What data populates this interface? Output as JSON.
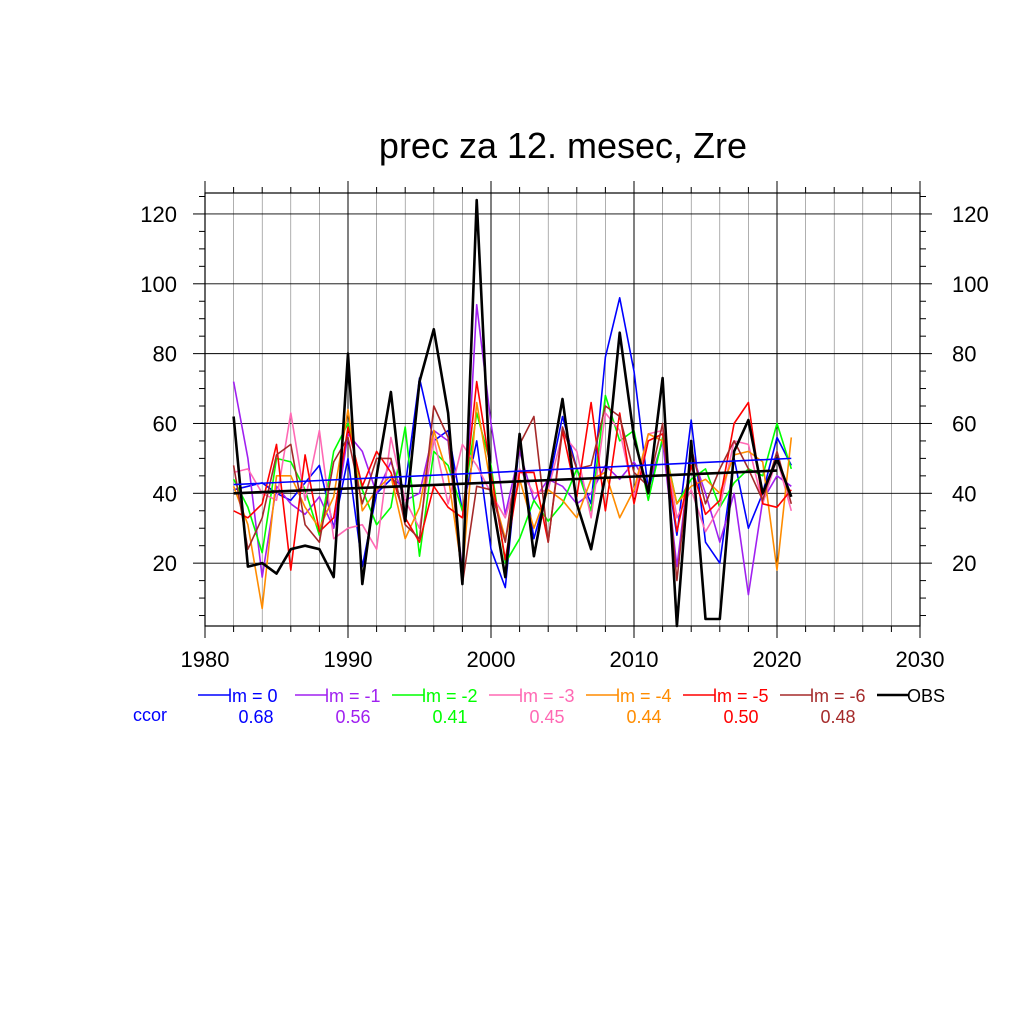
{
  "chart_data": {
    "type": "line",
    "title": "prec za 12. mesec, Zre",
    "xlim": [
      1980,
      2030
    ],
    "ylim": [
      2,
      126
    ],
    "x_ticks": [
      1980,
      1990,
      2000,
      2010,
      2020,
      2030
    ],
    "y_ticks": [
      20,
      40,
      60,
      80,
      100,
      120
    ],
    "grid": true,
    "ccor_label": "ccor",
    "x": [
      1982,
      1983,
      1984,
      1985,
      1986,
      1987,
      1988,
      1989,
      1990,
      1991,
      1992,
      1993,
      1994,
      1995,
      1996,
      1997,
      1998,
      1999,
      2000,
      2001,
      2002,
      2003,
      2004,
      2005,
      2006,
      2007,
      2008,
      2009,
      2010,
      2011,
      2012,
      2013,
      2014,
      2015,
      2016,
      2017,
      2018,
      2019,
      2020,
      2021
    ],
    "series": [
      {
        "name": "lm = 0",
        "color": "#0000ff",
        "ccor": "0.68",
        "width": 1.6,
        "values": [
          41,
          42,
          43,
          40,
          38,
          43,
          48,
          30,
          50,
          19,
          40,
          44,
          42,
          73,
          55,
          58,
          35,
          55,
          24,
          13,
          55,
          27,
          42,
          62,
          47,
          37,
          79,
          96,
          75,
          41,
          55,
          28,
          61,
          26,
          20,
          50,
          30,
          40,
          56,
          48
        ],
        "trend": [
          42.5,
          50.0
        ]
      },
      {
        "name": "lm = -1",
        "color": "#a020f0",
        "ccor": "0.56",
        "width": 1.6,
        "values": [
          72,
          50,
          16,
          42,
          37,
          34,
          39,
          30,
          57,
          52,
          40,
          49,
          38,
          40,
          58,
          55,
          18,
          94,
          60,
          34,
          52,
          38,
          44,
          42,
          37,
          40,
          48,
          44,
          49,
          42,
          55,
          19,
          52,
          40,
          26,
          40,
          11,
          38,
          45,
          42
        ]
      },
      {
        "name": "lm = -2",
        "color": "#00ff00",
        "ccor": "0.41",
        "width": 1.6,
        "values": [
          44,
          36,
          23,
          50,
          49,
          41,
          28,
          52,
          60,
          41,
          31,
          36,
          59,
          22,
          52,
          48,
          35,
          63,
          48,
          20,
          27,
          38,
          32,
          37,
          47,
          35,
          68,
          55,
          58,
          38,
          56,
          37,
          44,
          47,
          36,
          43,
          47,
          45,
          60,
          47
        ]
      },
      {
        "name": "lm = -3",
        "color": "#ff69b4",
        "ccor": "0.45",
        "width": 1.6,
        "values": [
          46,
          47,
          40,
          38,
          63,
          38,
          58,
          27,
          30,
          31,
          24,
          56,
          38,
          30,
          56,
          37,
          54,
          48,
          40,
          33,
          47,
          40,
          41,
          57,
          52,
          33,
          63,
          58,
          39,
          57,
          58,
          33,
          41,
          29,
          36,
          55,
          54,
          37,
          50,
          35
        ]
      },
      {
        "name": "lm = -4",
        "color": "#ff8c00",
        "ccor": "0.44",
        "width": 1.6,
        "values": [
          42,
          31,
          7,
          45,
          45,
          36,
          30,
          39,
          64,
          35,
          41,
          45,
          27,
          36,
          58,
          45,
          17,
          66,
          42,
          27,
          44,
          30,
          41,
          38,
          33,
          44,
          46,
          33,
          41,
          57,
          55,
          37,
          42,
          44,
          40,
          51,
          52,
          49,
          18,
          56
        ]
      },
      {
        "name": "lm = -5",
        "color": "#ff0000",
        "ccor": "0.50",
        "width": 1.6,
        "values": [
          35,
          33,
          37,
          54,
          18,
          51,
          29,
          33,
          59,
          42,
          52,
          46,
          33,
          26,
          42,
          36,
          33,
          72,
          46,
          21,
          46,
          46,
          26,
          58,
          39,
          66,
          35,
          63,
          37,
          55,
          57,
          29,
          48,
          34,
          38,
          60,
          66,
          37,
          36,
          41
        ]
      },
      {
        "name": "lm = -6",
        "color": "#a52a2a",
        "ccor": "0.48",
        "width": 1.6,
        "values": [
          48,
          24,
          33,
          51,
          54,
          31,
          26,
          49,
          56,
          37,
          50,
          50,
          31,
          27,
          65,
          56,
          14,
          42,
          41,
          26,
          54,
          62,
          26,
          59,
          47,
          48,
          65,
          62,
          46,
          42,
          60,
          15,
          53,
          37,
          47,
          55,
          47,
          38,
          52,
          37
        ]
      },
      {
        "name": "OBS",
        "color": "#000000",
        "ccor": "",
        "width": 2.6,
        "values": [
          62,
          19,
          20,
          17,
          24,
          25,
          24,
          16,
          80,
          14,
          45,
          69,
          32,
          72,
          87,
          63,
          14,
          124,
          40,
          16,
          57,
          22,
          44,
          67,
          37,
          24,
          45,
          86,
          56,
          40,
          73,
          2,
          55,
          4,
          4,
          52,
          61,
          40,
          50,
          39
        ],
        "trend": [
          40.0,
          46.5
        ]
      }
    ]
  }
}
